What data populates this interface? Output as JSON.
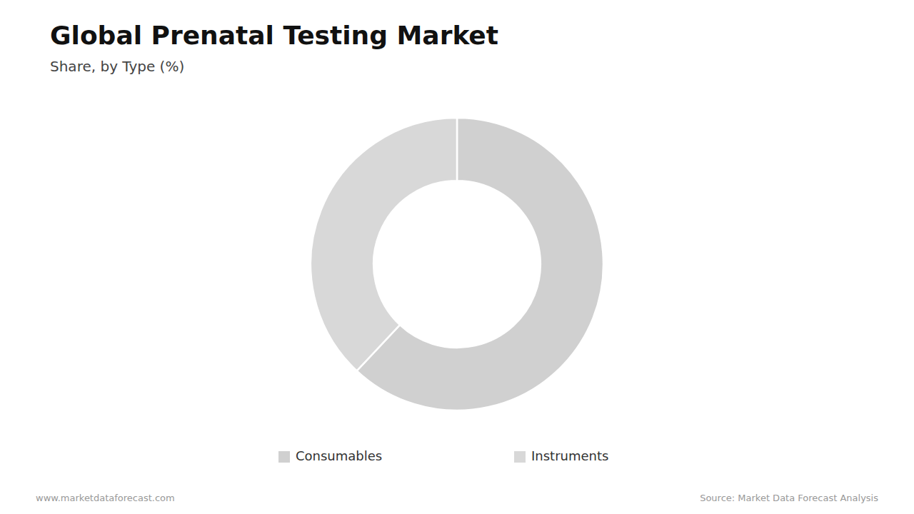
{
  "chart_data": {
    "type": "pie",
    "title": "Global Prenatal Testing Market",
    "subtitle": "Share, by Type (%)",
    "categories": [
      "Consumables",
      "Instruments"
    ],
    "values": [
      62,
      38
    ],
    "colors": [
      "#d0d0d0",
      "#d8d8d8"
    ],
    "legend": "bottom",
    "annotations": [
      "www.marketdataforecast.com",
      "Source: Market Data Forecast Analysis"
    ]
  }
}
